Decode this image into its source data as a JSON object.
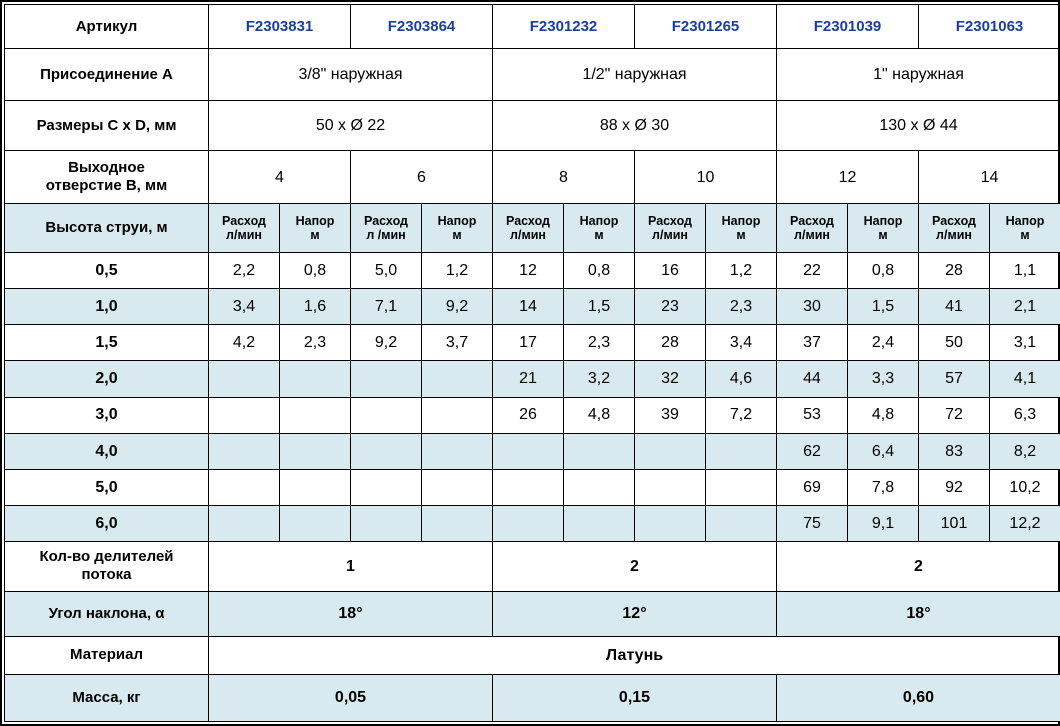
{
  "colors": {
    "accent_blue": "#1b3f9e",
    "row_blue": "#d8eaef",
    "border": "#000000"
  },
  "table": {
    "article": {
      "label": "Артикул",
      "values": [
        "F2303831",
        "F2303864",
        "F2301232",
        "F2301265",
        "F2301039",
        "F2301063"
      ]
    },
    "connection": {
      "label": "Присоединение A",
      "values": [
        "3/8\" наружная",
        "1/2\" наружная",
        "1\" наружная"
      ]
    },
    "dimensions": {
      "label": "Размеры C x D, мм",
      "values": [
        "50 x Ø 22",
        "88 x Ø 30",
        "130 x Ø 44"
      ]
    },
    "outlet": {
      "label_line1": "Выходное",
      "label_line2": "отверстие B, мм",
      "values": [
        "4",
        "6",
        "8",
        "10",
        "12",
        "14"
      ]
    },
    "jet": {
      "label": "Высота струи, м",
      "sub_headers": [
        {
          "l1": "Расход",
          "l2": "л/мин"
        },
        {
          "l1": "Напор",
          "l2": "м"
        },
        {
          "l1": "Расход",
          "l2": "л /мин"
        },
        {
          "l1": "Напор",
          "l2": "м"
        },
        {
          "l1": "Расход",
          "l2": "л/мин"
        },
        {
          "l1": "Напор",
          "l2": "м"
        },
        {
          "l1": "Расход",
          "l2": "л/мин"
        },
        {
          "l1": "Напор",
          "l2": "м"
        },
        {
          "l1": "Расход",
          "l2": "л/мин"
        },
        {
          "l1": "Напор",
          "l2": "м"
        },
        {
          "l1": "Расход",
          "l2": "л/мин"
        },
        {
          "l1": "Напор",
          "l2": "м"
        }
      ],
      "rows": [
        {
          "label": "0,5",
          "values": [
            "2,2",
            "0,8",
            "5,0",
            "1,2",
            "12",
            "0,8",
            "16",
            "1,2",
            "22",
            "0,8",
            "28",
            "1,1"
          ]
        },
        {
          "label": "1,0",
          "values": [
            "3,4",
            "1,6",
            "7,1",
            "9,2",
            "14",
            "1,5",
            "23",
            "2,3",
            "30",
            "1,5",
            "41",
            "2,1"
          ]
        },
        {
          "label": "1,5",
          "values": [
            "4,2",
            "2,3",
            "9,2",
            "3,7",
            "17",
            "2,3",
            "28",
            "3,4",
            "37",
            "2,4",
            "50",
            "3,1"
          ]
        },
        {
          "label": "2,0",
          "values": [
            "",
            "",
            "",
            "",
            "21",
            "3,2",
            "32",
            "4,6",
            "44",
            "3,3",
            "57",
            "4,1"
          ]
        },
        {
          "label": "3,0",
          "values": [
            "",
            "",
            "",
            "",
            "26",
            "4,8",
            "39",
            "7,2",
            "53",
            "4,8",
            "72",
            "6,3"
          ]
        },
        {
          "label": "4,0",
          "values": [
            "",
            "",
            "",
            "",
            "",
            "",
            "",
            "",
            "62",
            "6,4",
            "83",
            "8,2"
          ]
        },
        {
          "label": "5,0",
          "values": [
            "",
            "",
            "",
            "",
            "",
            "",
            "",
            "",
            "69",
            "7,8",
            "92",
            "10,2"
          ]
        },
        {
          "label": "6,0",
          "values": [
            "",
            "",
            "",
            "",
            "",
            "",
            "",
            "",
            "75",
            "9,1",
            "101",
            "12,2"
          ]
        }
      ]
    },
    "dividers": {
      "label_line1": "Кол-во делителей",
      "label_line2": "потока",
      "values": [
        "1",
        "2",
        "2"
      ]
    },
    "angle": {
      "label": "Угол наклона, α",
      "values": [
        "18°",
        "12°",
        "18°"
      ]
    },
    "material": {
      "label": "Материал",
      "value": "Латунь"
    },
    "mass": {
      "label": "Масса, кг",
      "values": [
        "0,05",
        "0,15",
        "0,60"
      ]
    }
  }
}
